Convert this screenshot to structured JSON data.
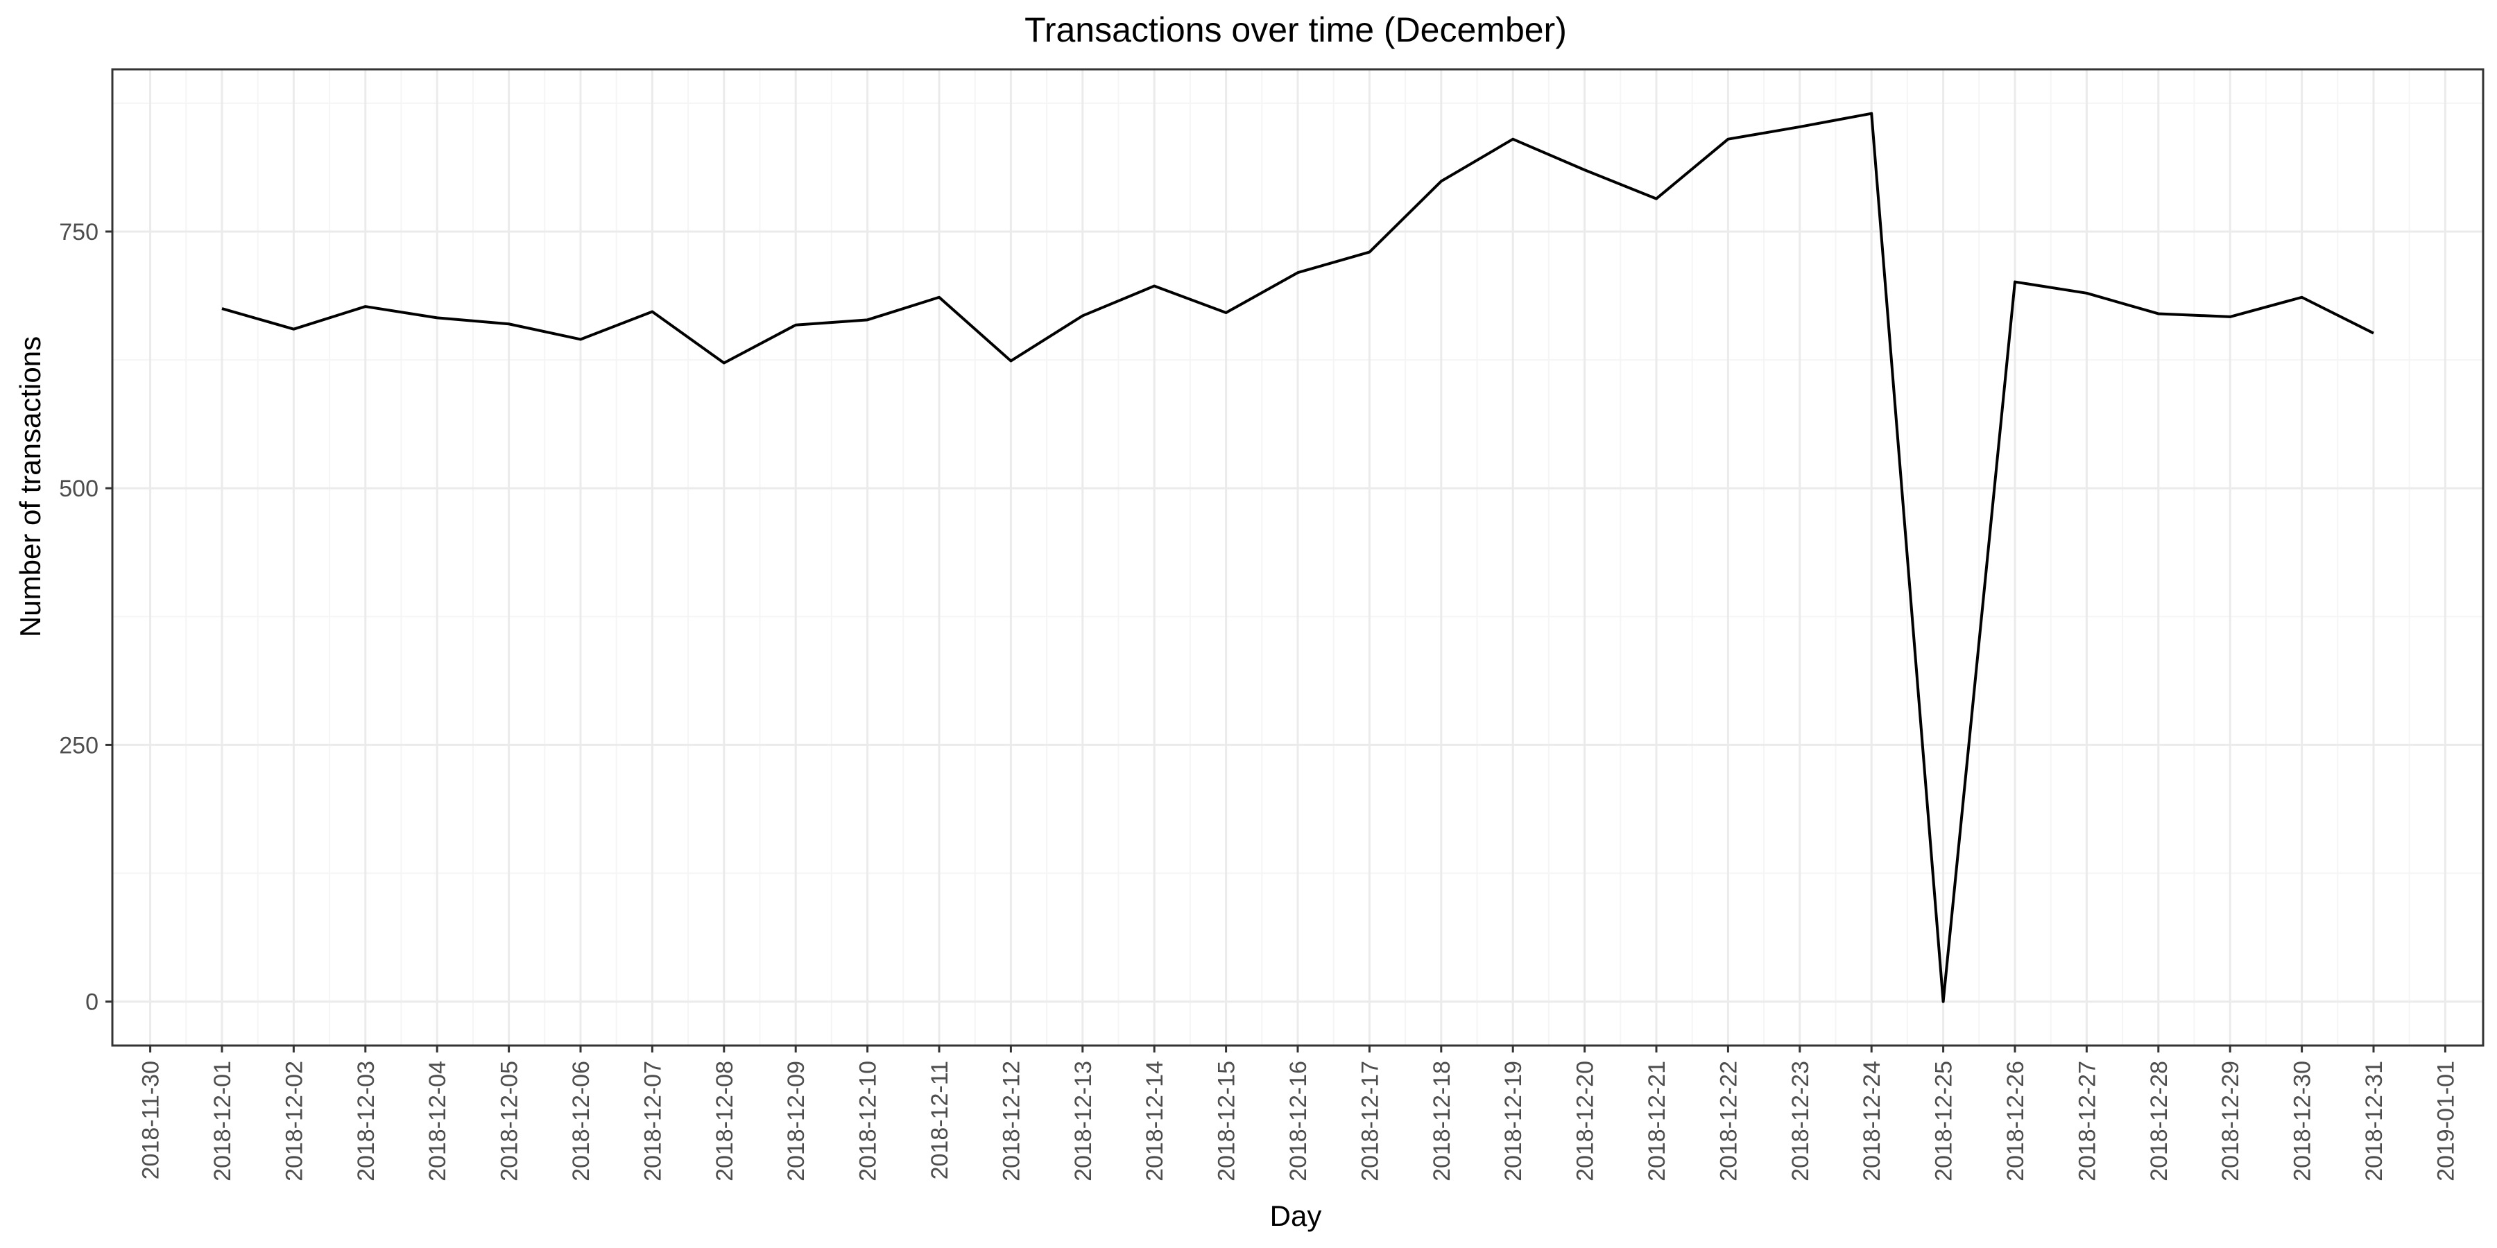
{
  "chart_data": {
    "type": "line",
    "title": "Transactions over time (December)",
    "xlabel": "Day",
    "ylabel": "Number of transactions",
    "x_ticks": [
      "2018-11-30",
      "2018-12-01",
      "2018-12-02",
      "2018-12-03",
      "2018-12-04",
      "2018-12-05",
      "2018-12-06",
      "2018-12-07",
      "2018-12-08",
      "2018-12-09",
      "2018-12-10",
      "2018-12-11",
      "2018-12-12",
      "2018-12-13",
      "2018-12-14",
      "2018-12-15",
      "2018-12-16",
      "2018-12-17",
      "2018-12-18",
      "2018-12-19",
      "2018-12-20",
      "2018-12-21",
      "2018-12-22",
      "2018-12-23",
      "2018-12-24",
      "2018-12-25",
      "2018-12-26",
      "2018-12-27",
      "2018-12-28",
      "2018-12-29",
      "2018-12-30",
      "2018-12-31",
      "2019-01-01"
    ],
    "x": [
      "2018-12-01",
      "2018-12-02",
      "2018-12-03",
      "2018-12-04",
      "2018-12-05",
      "2018-12-06",
      "2018-12-07",
      "2018-12-08",
      "2018-12-09",
      "2018-12-10",
      "2018-12-11",
      "2018-12-12",
      "2018-12-13",
      "2018-12-14",
      "2018-12-15",
      "2018-12-16",
      "2018-12-17",
      "2018-12-18",
      "2018-12-19",
      "2018-12-20",
      "2018-12-21",
      "2018-12-22",
      "2018-12-23",
      "2018-12-24",
      "2018-12-25",
      "2018-12-26",
      "2018-12-27",
      "2018-12-28",
      "2018-12-29",
      "2018-12-30",
      "2018-12-31"
    ],
    "series": [
      {
        "values": [
          675,
          655,
          677,
          666,
          660,
          645,
          672,
          622,
          659,
          664,
          686,
          624,
          668,
          697,
          671,
          710,
          730,
          799,
          840,
          810,
          782,
          840,
          852,
          865,
          0,
          701,
          690,
          670,
          667,
          686,
          651
        ]
      }
    ],
    "y_ticks": [
      0,
      250,
      500,
      750
    ],
    "xlim": [
      "2018-11-30",
      "2019-01-01"
    ],
    "ylim": [
      -42.8,
      908
    ],
    "grid": true,
    "legend": "none",
    "colors": {
      "line": "#000000",
      "grid_major": "#ebebeb",
      "grid_minor": "#f5f5f5",
      "panel_border": "#333333",
      "background": "#ffffff"
    }
  }
}
